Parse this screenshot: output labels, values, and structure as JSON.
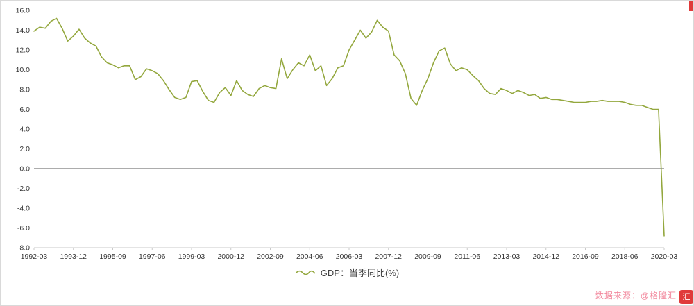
{
  "chart_data": {
    "type": "line",
    "title": "",
    "series_name": "GDP：当季同比(%)",
    "color": "#93a73d",
    "zero_line_color": "#595959",
    "axis_color": "#c9c9c9",
    "tick_text_color": "#333333",
    "ylim": [
      -8,
      16
    ],
    "y_ticks": [
      16,
      14,
      12,
      10,
      8,
      6,
      4,
      2,
      0,
      -2,
      -4,
      -6,
      -8
    ],
    "x_tick_labels": [
      "1992-03",
      "1993-12",
      "1995-09",
      "1997-06",
      "1999-03",
      "2000-12",
      "2002-09",
      "2004-06",
      "2006-03",
      "2007-12",
      "2009-09",
      "2011-06",
      "2013-03",
      "2014-12",
      "2016-09",
      "2018-06",
      "2020-03"
    ],
    "x": [
      "1992-03",
      "1992-06",
      "1992-09",
      "1992-12",
      "1993-03",
      "1993-06",
      "1993-09",
      "1993-12",
      "1994-03",
      "1994-06",
      "1994-09",
      "1994-12",
      "1995-03",
      "1995-06",
      "1995-09",
      "1995-12",
      "1996-03",
      "1996-06",
      "1996-09",
      "1996-12",
      "1997-03",
      "1997-06",
      "1997-09",
      "1997-12",
      "1998-03",
      "1998-06",
      "1998-09",
      "1998-12",
      "1999-03",
      "1999-06",
      "1999-09",
      "1999-12",
      "2000-03",
      "2000-06",
      "2000-09",
      "2000-12",
      "2001-03",
      "2001-06",
      "2001-09",
      "2001-12",
      "2002-03",
      "2002-06",
      "2002-09",
      "2002-12",
      "2003-03",
      "2003-06",
      "2003-09",
      "2003-12",
      "2004-03",
      "2004-06",
      "2004-09",
      "2004-12",
      "2005-03",
      "2005-06",
      "2005-09",
      "2005-12",
      "2006-03",
      "2006-06",
      "2006-09",
      "2006-12",
      "2007-03",
      "2007-06",
      "2007-09",
      "2007-12",
      "2008-03",
      "2008-06",
      "2008-09",
      "2008-12",
      "2009-03",
      "2009-06",
      "2009-09",
      "2009-12",
      "2010-03",
      "2010-06",
      "2010-09",
      "2010-12",
      "2011-03",
      "2011-06",
      "2011-09",
      "2011-12",
      "2012-03",
      "2012-06",
      "2012-09",
      "2012-12",
      "2013-03",
      "2013-06",
      "2013-09",
      "2013-12",
      "2014-03",
      "2014-06",
      "2014-09",
      "2014-12",
      "2015-03",
      "2015-06",
      "2015-09",
      "2015-12",
      "2016-03",
      "2016-06",
      "2016-09",
      "2016-12",
      "2017-03",
      "2017-06",
      "2017-09",
      "2017-12",
      "2018-03",
      "2018-06",
      "2018-09",
      "2018-12",
      "2019-03",
      "2019-06",
      "2019-09",
      "2019-12",
      "2020-03"
    ],
    "values": [
      13.9,
      14.3,
      14.2,
      14.9,
      15.2,
      14.2,
      12.9,
      13.4,
      14.1,
      13.2,
      12.7,
      12.4,
      11.3,
      10.7,
      10.5,
      10.2,
      10.4,
      10.4,
      9.0,
      9.3,
      10.1,
      9.9,
      9.6,
      8.9,
      8.0,
      7.2,
      7.0,
      7.2,
      8.8,
      8.9,
      7.8,
      6.9,
      6.7,
      7.7,
      8.2,
      7.4,
      8.9,
      7.9,
      7.5,
      7.3,
      8.1,
      8.4,
      8.2,
      8.1,
      11.1,
      9.1,
      10.0,
      10.7,
      10.4,
      11.5,
      9.9,
      10.4,
      8.4,
      9.1,
      10.2,
      10.4,
      12.0,
      13.0,
      14.0,
      13.2,
      13.8,
      15.0,
      14.3,
      13.9,
      11.5,
      10.9,
      9.6,
      7.1,
      6.4,
      7.9,
      9.1,
      10.7,
      11.9,
      12.2,
      10.6,
      9.9,
      10.2,
      10.0,
      9.4,
      8.9,
      8.1,
      7.6,
      7.5,
      8.1,
      7.9,
      7.6,
      7.9,
      7.7,
      7.4,
      7.5,
      7.1,
      7.2,
      7.0,
      7.0,
      6.9,
      6.8,
      6.7,
      6.7,
      6.7,
      6.8,
      6.8,
      6.9,
      6.8,
      6.8,
      6.8,
      6.7,
      6.5,
      6.4,
      6.4,
      6.2,
      6.0,
      6.0,
      -6.8
    ],
    "legend_position": "bottom"
  },
  "legend": {
    "label": "GDP：当季同比(%)"
  },
  "source": {
    "label": "数据来源：@格隆汇",
    "badge_char": "汇",
    "color": "#f2879c",
    "badge_color": "#e03a3a"
  }
}
